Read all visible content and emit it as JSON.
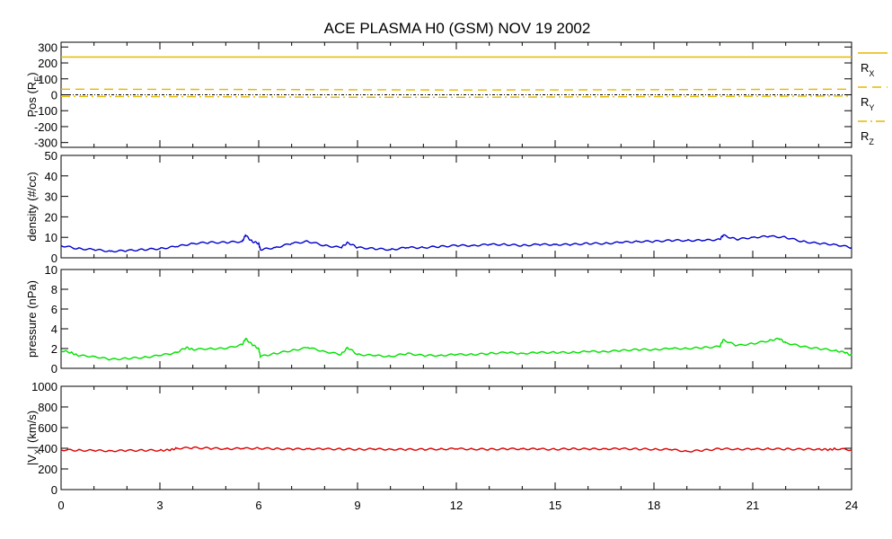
{
  "title": "ACE PLASMA H0 (GSM)   NOV 19 2002",
  "x_ticks": [
    0,
    3,
    6,
    9,
    12,
    15,
    18,
    21,
    24
  ],
  "x_range": [
    0,
    24
  ],
  "legend": {
    "rx": {
      "main": "R",
      "sub": "X"
    },
    "ry": {
      "main": "R",
      "sub": "Y"
    },
    "rz": {
      "main": "R",
      "sub": "Z"
    }
  },
  "colors": {
    "position": "#e6b800",
    "density": "#0000cc",
    "pressure": "#00e000",
    "velocity": "#dd0000",
    "zero_line": "#000000"
  },
  "panels": [
    {
      "id": "pos",
      "ylabel": "Pos (R",
      "ylabel_sub": "E",
      "ylabel_end": ")",
      "ylim": [
        -330,
        330
      ],
      "yticks": [
        300,
        200,
        100,
        0,
        -100,
        -200,
        -300
      ]
    },
    {
      "id": "density",
      "ylabel": "density (#/cc)",
      "ylim": [
        0,
        50
      ],
      "yticks": [
        50,
        40,
        30,
        20,
        10,
        0
      ]
    },
    {
      "id": "pressure",
      "ylabel": "pressure (nPa)",
      "ylim": [
        0,
        10
      ],
      "yticks": [
        10,
        8,
        6,
        4,
        2,
        0
      ]
    },
    {
      "id": "velocity",
      "ylabel": "|V",
      "ylabel_sub": "X",
      "ylabel_end": "| (km/s)",
      "ylim": [
        0,
        1000
      ],
      "yticks": [
        1000,
        800,
        600,
        400,
        200,
        0
      ]
    }
  ],
  "chart_data": [
    {
      "type": "line",
      "title": "ACE PLASMA H0 (GSM)   NOV 19 2002",
      "ylabel": "Pos (RE)",
      "xlim": [
        0,
        24
      ],
      "ylim": [
        -330,
        330
      ],
      "series": [
        {
          "name": "RX",
          "style": "solid",
          "x": [
            0,
            24
          ],
          "y": [
            237,
            237
          ]
        },
        {
          "name": "RY",
          "style": "dashed",
          "x": [
            0,
            4,
            8,
            12,
            16,
            20,
            24
          ],
          "y": [
            35,
            34,
            32,
            30,
            31,
            33,
            35
          ]
        },
        {
          "name": "RZ",
          "style": "dash-dot",
          "x": [
            0,
            4,
            8,
            12,
            16,
            20,
            24
          ],
          "y": [
            -10,
            -12,
            -15,
            -16,
            -13,
            -10,
            -8
          ]
        }
      ]
    },
    {
      "type": "line",
      "ylabel": "density (#/cc)",
      "xlim": [
        0,
        24
      ],
      "ylim": [
        0,
        50
      ],
      "series": [
        {
          "name": "density",
          "x": [
            0,
            0.5,
            1,
            1.5,
            2,
            2.5,
            3,
            3.5,
            4,
            4.5,
            5,
            5.5,
            5.6,
            5.8,
            6,
            6.05,
            6.5,
            7,
            7.5,
            8,
            8.5,
            8.7,
            9,
            9.5,
            10,
            10.5,
            11,
            11.5,
            12,
            12.5,
            13,
            13.5,
            14,
            14.5,
            15,
            15.5,
            16,
            16.5,
            17,
            17.5,
            18,
            18.5,
            19,
            19.5,
            20,
            20.1,
            20.5,
            21,
            21.5,
            22,
            22.5,
            23,
            23.5,
            24
          ],
          "y": [
            6,
            4.5,
            4,
            3.2,
            3.5,
            4,
            4.5,
            5.5,
            7,
            7.5,
            7.5,
            8,
            11,
            8,
            7,
            4,
            5,
            7,
            8,
            6,
            5,
            7.5,
            5,
            4.5,
            4,
            5,
            5,
            5.5,
            6,
            6,
            6.5,
            6.5,
            6,
            6.5,
            6.5,
            6.5,
            7,
            7,
            7.5,
            8,
            8,
            8.5,
            8.5,
            8.5,
            9,
            11,
            9,
            10,
            10.5,
            10,
            8,
            7,
            6.5,
            5
          ]
        }
      ]
    },
    {
      "type": "line",
      "ylabel": "pressure (nPa)",
      "xlim": [
        0,
        24
      ],
      "ylim": [
        0,
        10
      ],
      "series": [
        {
          "name": "pressure",
          "x": [
            0,
            0.3,
            0.5,
            1,
            1.5,
            2,
            2.5,
            3,
            3.5,
            3.8,
            4,
            4.5,
            5,
            5.5,
            5.6,
            5.8,
            6,
            6.05,
            6.5,
            7,
            7.5,
            8,
            8.5,
            8.7,
            9,
            9.5,
            10,
            10.5,
            11,
            11.5,
            12,
            12.5,
            13,
            13.5,
            14,
            14.5,
            15,
            15.5,
            16,
            16.5,
            17,
            17.5,
            18,
            18.5,
            19,
            19.5,
            20,
            20.1,
            20.5,
            21,
            21.5,
            21.8,
            22,
            22.5,
            23,
            23.5,
            23.8,
            24
          ],
          "y": [
            1.8,
            1.6,
            1.3,
            1.2,
            0.9,
            1.0,
            1.1,
            1.3,
            1.6,
            2.1,
            1.9,
            2.0,
            2.0,
            2.4,
            3.0,
            2.4,
            2.0,
            1.2,
            1.5,
            1.8,
            2.1,
            1.7,
            1.4,
            2.1,
            1.4,
            1.3,
            1.2,
            1.5,
            1.3,
            1.3,
            1.4,
            1.4,
            1.5,
            1.6,
            1.5,
            1.6,
            1.6,
            1.6,
            1.7,
            1.7,
            1.8,
            1.9,
            1.9,
            2.0,
            2.0,
            2.1,
            2.2,
            2.9,
            2.3,
            2.5,
            2.8,
            3.0,
            2.6,
            2.2,
            2.0,
            1.8,
            1.6,
            1.3
          ]
        }
      ]
    },
    {
      "type": "line",
      "ylabel": "|VX| (km/s)",
      "xlim": [
        0,
        24
      ],
      "ylim": [
        0,
        1000
      ],
      "series": [
        {
          "name": "|VX|",
          "x": [
            0,
            0.5,
            1,
            1.5,
            2,
            2.5,
            3,
            3.3,
            3.5,
            4,
            4.5,
            5,
            5.5,
            6,
            6.5,
            7,
            7.5,
            8,
            8.5,
            9,
            9.5,
            10,
            10.5,
            11,
            11.5,
            12,
            12.5,
            13,
            13.5,
            14,
            14.5,
            15,
            15.5,
            16,
            16.5,
            17,
            17.5,
            18,
            18.5,
            19,
            19.5,
            20,
            20.5,
            21,
            21.5,
            22,
            22.5,
            23,
            23.3,
            23.5,
            24
          ],
          "y": [
            385,
            380,
            378,
            375,
            378,
            380,
            380,
            382,
            400,
            405,
            400,
            395,
            398,
            400,
            395,
            392,
            395,
            393,
            392,
            390,
            392,
            390,
            388,
            390,
            392,
            395,
            392,
            390,
            393,
            395,
            392,
            390,
            395,
            392,
            395,
            395,
            393,
            390,
            388,
            370,
            380,
            395,
            392,
            390,
            395,
            392,
            390,
            392,
            385,
            395,
            385
          ]
        }
      ]
    }
  ]
}
